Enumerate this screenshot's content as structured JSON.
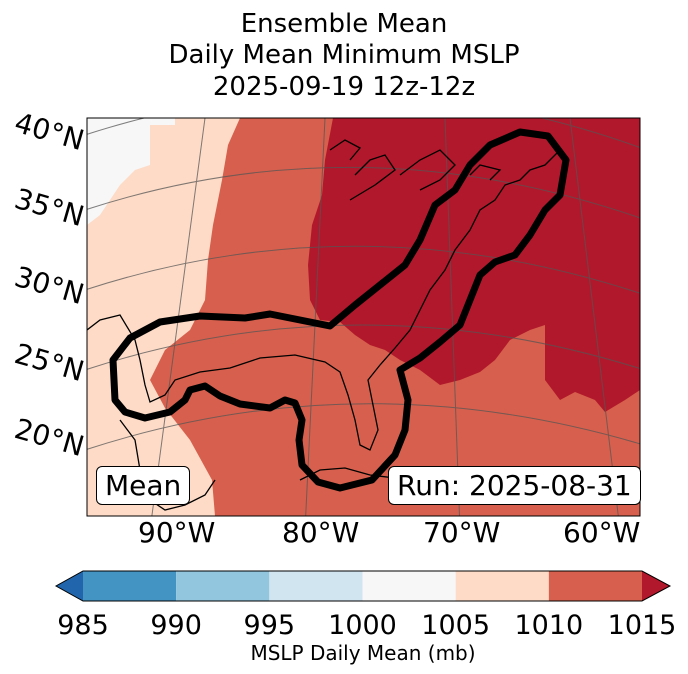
{
  "title": {
    "line1": "Ensemble Mean",
    "line2": "Daily Mean Minimum MSLP",
    "line3": "2025-09-19 12z-12z"
  },
  "map": {
    "lat_labels": [
      "40°N",
      "35°N",
      "30°N",
      "25°N",
      "20°N"
    ],
    "lon_labels": [
      "90°W",
      "80°W",
      "70°W",
      "60°W"
    ],
    "mean_box": "Mean",
    "run_box": "Run: 2025-08-31",
    "fill_regions": [
      {
        "name": "region-1000-1005",
        "range_mb": [
          1000,
          1005
        ],
        "color": "#f7f7f7"
      },
      {
        "name": "region-1005-1010",
        "range_mb": [
          1005,
          1010
        ],
        "color": "#fddbc7"
      },
      {
        "name": "region-1010-1015",
        "range_mb": [
          1010,
          1015
        ],
        "color": "#d6604d"
      },
      {
        "name": "region-above-1015",
        "range_mb": [
          1015,
          null
        ],
        "color": "#b2182b"
      }
    ],
    "contour": {
      "name": "ensemble-contour",
      "color": "#000000"
    }
  },
  "colorbar": {
    "label": "MSLP Daily Mean (mb)",
    "ticks": [
      "985",
      "990",
      "995",
      "1000",
      "1005",
      "1010",
      "1015"
    ],
    "under_color": "#2166ac",
    "over_color": "#b2182b",
    "bins": [
      {
        "from": 985,
        "to": 990,
        "color": "#4393c3"
      },
      {
        "from": 990,
        "to": 995,
        "color": "#92c5de"
      },
      {
        "from": 995,
        "to": 1000,
        "color": "#d1e5f0"
      },
      {
        "from": 1000,
        "to": 1005,
        "color": "#f7f7f7"
      },
      {
        "from": 1005,
        "to": 1010,
        "color": "#fddbc7"
      },
      {
        "from": 1010,
        "to": 1015,
        "color": "#d6604d"
      }
    ]
  }
}
